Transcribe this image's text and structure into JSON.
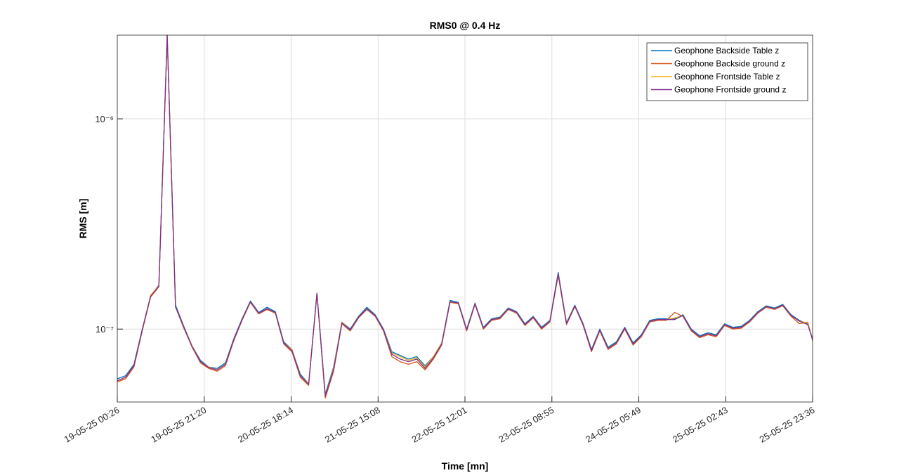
{
  "chart_data": {
    "type": "line",
    "title": "RMS0 @ 0.4 Hz",
    "xlabel": "Time [mn]",
    "ylabel": "RMS [m]",
    "yscale": "log",
    "grid": true,
    "legend": "upper right",
    "x": [
      "19-05-25 00:26",
      "19-05-25 02:26",
      "19-05-25 04:26",
      "19-05-25 06:26",
      "19-05-25 08:26",
      "19-05-25 10:26",
      "19-05-25 12:26",
      "19-05-25 14:26",
      "19-05-25 16:26",
      "19-05-25 18:26",
      "19-05-25 20:26",
      "19-05-25 22:26",
      "20-05-25 00:26",
      "20-05-25 02:26",
      "20-05-25 04:26",
      "20-05-25 06:26",
      "20-05-25 08:26",
      "20-05-25 10:26",
      "20-05-25 12:26",
      "20-05-25 14:26",
      "20-05-25 16:26",
      "20-05-25 18:26",
      "20-05-25 20:26",
      "20-05-25 22:26",
      "21-05-25 00:26",
      "21-05-25 02:26",
      "21-05-25 04:26",
      "21-05-25 06:26",
      "21-05-25 08:26",
      "21-05-25 10:26",
      "21-05-25 12:26",
      "21-05-25 14:26",
      "21-05-25 16:26",
      "21-05-25 18:26",
      "21-05-25 20:26",
      "21-05-25 22:26",
      "22-05-25 00:26",
      "22-05-25 02:26",
      "22-05-25 04:26",
      "22-05-25 06:26",
      "22-05-25 08:26",
      "22-05-25 10:26",
      "22-05-25 12:26",
      "22-05-25 14:26",
      "22-05-25 16:26",
      "22-05-25 18:26",
      "22-05-25 20:26",
      "22-05-25 22:26",
      "23-05-25 00:26",
      "23-05-25 02:26",
      "23-05-25 04:26",
      "23-05-25 06:26",
      "23-05-25 08:26",
      "23-05-25 10:26",
      "23-05-25 12:26",
      "23-05-25 14:26",
      "23-05-25 16:26",
      "23-05-25 18:26",
      "23-05-25 20:26",
      "23-05-25 22:26",
      "24-05-25 00:26",
      "24-05-25 02:26",
      "24-05-25 04:26",
      "24-05-25 06:26",
      "24-05-25 08:26",
      "24-05-25 10:26",
      "24-05-25 12:26",
      "24-05-25 14:26",
      "24-05-25 16:26",
      "24-05-25 18:26",
      "24-05-25 20:26",
      "24-05-25 22:26",
      "25-05-25 00:26",
      "25-05-25 02:26",
      "25-05-25 04:26",
      "25-05-25 06:26",
      "25-05-25 08:26",
      "25-05-25 10:26",
      "25-05-25 12:26",
      "25-05-25 14:26",
      "25-05-25 16:26",
      "25-05-25 18:26",
      "25-05-25 20:26",
      "25-05-25 22:26",
      "25-05-25 23:36"
    ],
    "series": [
      {
        "name": "Geophone Backside Table z",
        "color": "#0072BD",
        "values": [
          5.8e-08,
          6e-08,
          6.8e-08,
          1e-07,
          1.44e-07,
          1.62e-07,
          2.49e-06,
          1.3e-07,
          1.03e-07,
          8.3e-08,
          7.1e-08,
          6.6e-08,
          6.5e-08,
          6.9e-08,
          9e-08,
          1.12e-07,
          1.36e-07,
          1.2e-07,
          1.27e-07,
          1.21e-07,
          8.7e-08,
          8e-08,
          6.1e-08,
          5.5e-08,
          1.48e-07,
          4.9e-08,
          6.6e-08,
          1.08e-07,
          1e-07,
          1.15e-07,
          1.27e-07,
          1.17e-07,
          1e-07,
          7.8e-08,
          7.5e-08,
          7.2e-08,
          7.4e-08,
          6.7e-08,
          7.4e-08,
          8.6e-08,
          1.37e-07,
          1.34e-07,
          1e-07,
          1.33e-07,
          1.02e-07,
          1.12e-07,
          1.14e-07,
          1.26e-07,
          1.21e-07,
          1.06e-07,
          1.15e-07,
          1.02e-07,
          1.1e-07,
          1.86e-07,
          1.07e-07,
          1.3e-07,
          1.06e-07,
          8e-08,
          1e-07,
          8.2e-08,
          8.7e-08,
          1.02e-07,
          8.6e-08,
          9.4e-08,
          1.1e-07,
          1.12e-07,
          1.12e-07,
          1.12e-07,
          1.17e-07,
          1e-07,
          9.3e-08,
          9.6e-08,
          9.4e-08,
          1.06e-07,
          1.02e-07,
          1.03e-07,
          1.1e-07,
          1.21e-07,
          1.29e-07,
          1.26e-07,
          1.31e-07,
          1.17e-07,
          1.1e-07,
          1.06e-07,
          9e-08
        ]
      },
      {
        "name": "Geophone Backside ground z",
        "color": "#D95319",
        "values": [
          5.6e-08,
          5.8e-08,
          6.6e-08,
          9.8e-08,
          1.42e-07,
          1.59e-07,
          2.49e-06,
          1.27e-07,
          1.01e-07,
          8.2e-08,
          6.9e-08,
          6.5e-08,
          6.3e-08,
          6.7e-08,
          8.8e-08,
          1.1e-07,
          1.34e-07,
          1.18e-07,
          1.24e-07,
          1.19e-07,
          8.5e-08,
          7.8e-08,
          5.9e-08,
          5.4e-08,
          1.47e-07,
          4.7e-08,
          6.3e-08,
          1.06e-07,
          9.8e-08,
          1.13e-07,
          1.24e-07,
          1.15e-07,
          9.8e-08,
          7.4e-08,
          7e-08,
          6.8e-08,
          7e-08,
          6.4e-08,
          7.2e-08,
          8.4e-08,
          1.34e-07,
          1.32e-07,
          9.8e-08,
          1.31e-07,
          1e-07,
          1.1e-07,
          1.12e-07,
          1.24e-07,
          1.19e-07,
          1.04e-07,
          1.13e-07,
          1e-07,
          1.08e-07,
          1.8e-07,
          1.05e-07,
          1.28e-07,
          1.04e-07,
          7.8e-08,
          9.8e-08,
          8e-08,
          8.5e-08,
          1e-07,
          8.4e-08,
          9.2e-08,
          1.08e-07,
          1.1e-07,
          1.1e-07,
          1.2e-07,
          1.15e-07,
          9.8e-08,
          9.1e-08,
          9.4e-08,
          9.2e-08,
          1.04e-07,
          1e-07,
          1.01e-07,
          1.08e-07,
          1.19e-07,
          1.27e-07,
          1.24e-07,
          1.29e-07,
          1.15e-07,
          1.06e-07,
          1.08e-07,
          8.8e-08
        ]
      },
      {
        "name": "Geophone Frontside Table z",
        "color": "#EDB120",
        "values": [
          5.7e-08,
          5.9e-08,
          6.7e-08,
          9.9e-08,
          1.45e-07,
          1.61e-07,
          2.49e-06,
          1.28e-07,
          1.02e-07,
          8.3e-08,
          7e-08,
          6.6e-08,
          6.4e-08,
          6.8e-08,
          8.9e-08,
          1.11e-07,
          1.35e-07,
          1.19e-07,
          1.25e-07,
          1.2e-07,
          8.6e-08,
          8e-08,
          6e-08,
          5.5e-08,
          1.48e-07,
          4.8e-08,
          6.5e-08,
          1.08e-07,
          9.9e-08,
          1.14e-07,
          1.25e-07,
          1.16e-07,
          9.9e-08,
          7.7e-08,
          7.4e-08,
          7.1e-08,
          7.3e-08,
          6.6e-08,
          7.4e-08,
          8.6e-08,
          1.35e-07,
          1.33e-07,
          9.9e-08,
          1.32e-07,
          1.01e-07,
          1.11e-07,
          1.13e-07,
          1.25e-07,
          1.2e-07,
          1.05e-07,
          1.14e-07,
          1.01e-07,
          1.09e-07,
          1.83e-07,
          1.06e-07,
          1.29e-07,
          1.05e-07,
          7.9e-08,
          9.9e-08,
          8.1e-08,
          8.6e-08,
          1.01e-07,
          8.5e-08,
          9.3e-08,
          1.09e-07,
          1.11e-07,
          1.11e-07,
          1.13e-07,
          1.16e-07,
          9.9e-08,
          9.2e-08,
          9.5e-08,
          9.3e-08,
          1.05e-07,
          1.01e-07,
          1.02e-07,
          1.09e-07,
          1.2e-07,
          1.28e-07,
          1.25e-07,
          1.3e-07,
          1.16e-07,
          1.09e-07,
          1.07e-07,
          8.9e-08
        ]
      },
      {
        "name": "Geophone Frontside ground z",
        "color": "#7E2F8E",
        "values": [
          5.67e-08,
          5.9e-08,
          6.7e-08,
          9.9e-08,
          1.43e-07,
          1.6e-07,
          2.49e-06,
          1.28e-07,
          1.02e-07,
          8.25e-08,
          7e-08,
          6.56e-08,
          6.4e-08,
          6.8e-08,
          8.9e-08,
          1.11e-07,
          1.35e-07,
          1.19e-07,
          1.25e-07,
          1.2e-07,
          8.6e-08,
          7.9e-08,
          6e-08,
          5.45e-08,
          1.48e-07,
          4.8e-08,
          6.4e-08,
          1.07e-07,
          9.9e-08,
          1.14e-07,
          1.25e-07,
          1.16e-07,
          9.9e-08,
          7.6e-08,
          7.2e-08,
          7e-08,
          7.2e-08,
          6.5e-08,
          7.3e-08,
          8.5e-08,
          1.35e-07,
          1.33e-07,
          9.9e-08,
          1.32e-07,
          1.01e-07,
          1.11e-07,
          1.13e-07,
          1.25e-07,
          1.2e-07,
          1.05e-07,
          1.14e-07,
          1.01e-07,
          1.09e-07,
          1.83e-07,
          1.06e-07,
          1.29e-07,
          1.05e-07,
          7.9e-08,
          9.9e-08,
          8.1e-08,
          8.6e-08,
          1.01e-07,
          8.5e-08,
          9.3e-08,
          1.09e-07,
          1.11e-07,
          1.11e-07,
          1.11e-07,
          1.16e-07,
          9.9e-08,
          9.2e-08,
          9.5e-08,
          9.3e-08,
          1.05e-07,
          1.01e-07,
          1.02e-07,
          1.09e-07,
          1.2e-07,
          1.28e-07,
          1.25e-07,
          1.3e-07,
          1.16e-07,
          1.09e-07,
          1.05e-07,
          8.9e-08
        ]
      }
    ],
    "xlim": [
      "19-05-25 00:26",
      "25-05-25 23:36"
    ],
    "xticks": [
      "19-05-25 00:26",
      "19-05-25 21:20",
      "20-05-25 18:14",
      "21-05-25 15:08",
      "22-05-25 12:01",
      "23-05-25 08:55",
      "24-05-25 05:49",
      "25-05-25 02:43",
      "25-05-25 23:36"
    ],
    "ylim": [
      4.5e-08,
      2.5e-06
    ],
    "yticks": [
      {
        "value": 1e-07,
        "label": "10⁻⁷"
      },
      {
        "value": 1e-06,
        "label": "10⁻⁶"
      }
    ]
  }
}
